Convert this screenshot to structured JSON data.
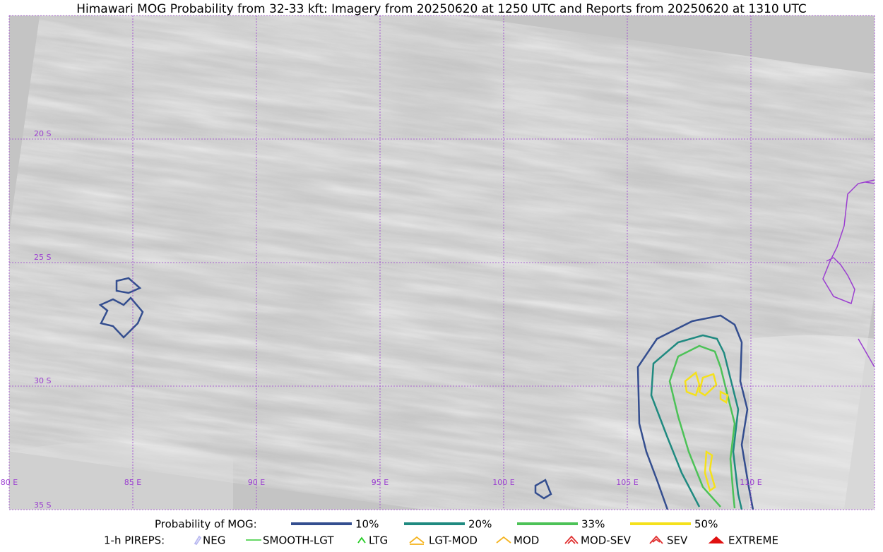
{
  "header": {
    "title": "Himawari MOG Probability from 32-33 kft: Imagery from 20250620 at 1250 UTC and Reports from 20250620 at 1310 UTC"
  },
  "map": {
    "latitude_labels": [
      "20 S",
      "25 S",
      "30 S",
      "35 S"
    ],
    "longitude_labels": [
      "80 E",
      "85 E",
      "90 E",
      "95 E",
      "100 E",
      "105 E",
      "110 E"
    ],
    "grid_color": "#9b3fd0"
  },
  "legend": {
    "probability": {
      "label": "Probability of MOG:",
      "items": [
        {
          "name": "10%",
          "color": "#344e8f"
        },
        {
          "name": "20%",
          "color": "#1f8a80"
        },
        {
          "name": "33%",
          "color": "#4cc257"
        },
        {
          "name": "50%",
          "color": "#f5e11b"
        }
      ]
    },
    "pireps": {
      "label": "1-h PIREPS:",
      "items": [
        {
          "name": "NEG",
          "color": "#b8b8f0"
        },
        {
          "name": "SMOOTH-LGT",
          "color": "#33cc33"
        },
        {
          "name": "LTG",
          "color": "#22cc22"
        },
        {
          "name": "LGT-MOD",
          "color": "#f5b21b"
        },
        {
          "name": "MOD",
          "color": "#f5b21b"
        },
        {
          "name": "MOD-SEV",
          "color": "#e03030"
        },
        {
          "name": "SEV",
          "color": "#e03030"
        },
        {
          "name": "EXTREME",
          "color": "#e01010"
        }
      ]
    }
  }
}
